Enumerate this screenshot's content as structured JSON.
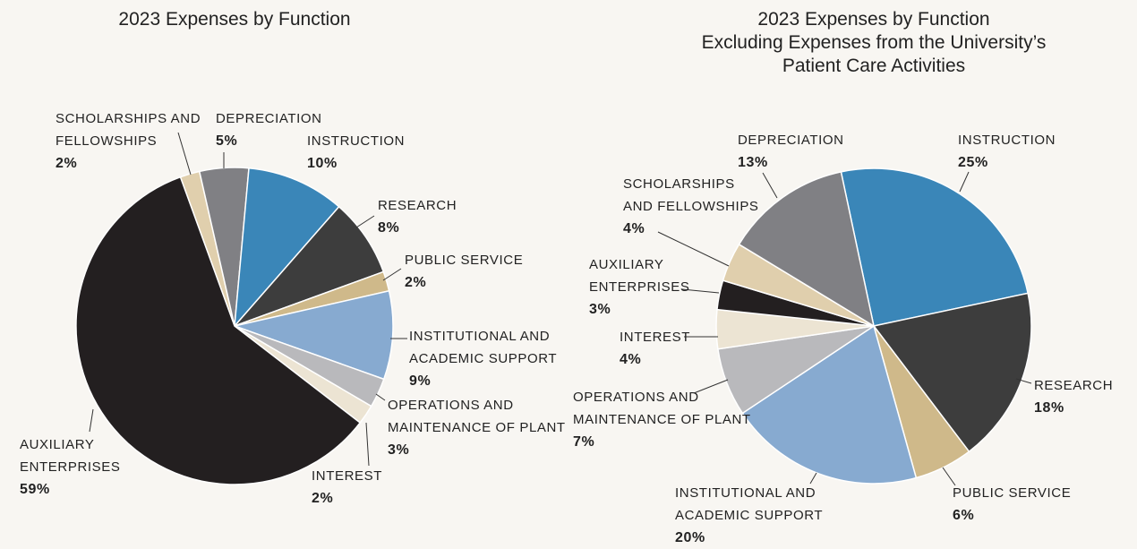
{
  "chart_data": [
    {
      "type": "pie",
      "title": "2023 Expenses by Function",
      "categories": [
        "SCHOLARSHIPS AND\nFELLOWSHIPS",
        "DEPRECIATION",
        "INSTRUCTION",
        "RESEARCH",
        "PUBLIC SERVICE",
        "INSTITUTIONAL AND\nACADEMIC SUPPORT",
        "OPERATIONS AND\nMAINTENANCE OF PLANT",
        "INTEREST",
        "AUXILIARY\nENTERPRISES"
      ],
      "values": [
        2,
        5,
        10,
        8,
        2,
        9,
        3,
        2,
        59
      ],
      "value_labels": [
        "2%",
        "5%",
        "10%",
        "8%",
        "2%",
        "9%",
        "3%",
        "2%",
        "59%"
      ],
      "colors": [
        "#e0cfad",
        "#808084",
        "#3a86b8",
        "#3d3d3d",
        "#cfb98a",
        "#87aad0",
        "#b9b9bc",
        "#ece4d3",
        "#231f20"
      ]
    },
    {
      "type": "pie",
      "title": "2023 Expenses by Function\nExcluding Expenses from the University’s\nPatient Care Activities",
      "categories": [
        "INSTRUCTION",
        "RESEARCH",
        "PUBLIC SERVICE",
        "INSTITUTIONAL AND\nACADEMIC SUPPORT",
        "OPERATIONS AND\nMAINTENANCE OF PLANT",
        "INTEREST",
        "AUXILIARY\nENTERPRISES",
        "SCHOLARSHIPS\nAND FELLOWSHIPS",
        "DEPRECIATION"
      ],
      "values": [
        25,
        18,
        6,
        20,
        7,
        4,
        3,
        4,
        13
      ],
      "value_labels": [
        "25%",
        "18%",
        "6%",
        "20%",
        "7%",
        "4%",
        "3%",
        "4%",
        "13%"
      ],
      "colors": [
        "#3a86b8",
        "#3d3d3d",
        "#cfb98a",
        "#87aad0",
        "#b9b9bc",
        "#ece4d3",
        "#231f20",
        "#e0cfad",
        "#808084"
      ]
    }
  ]
}
